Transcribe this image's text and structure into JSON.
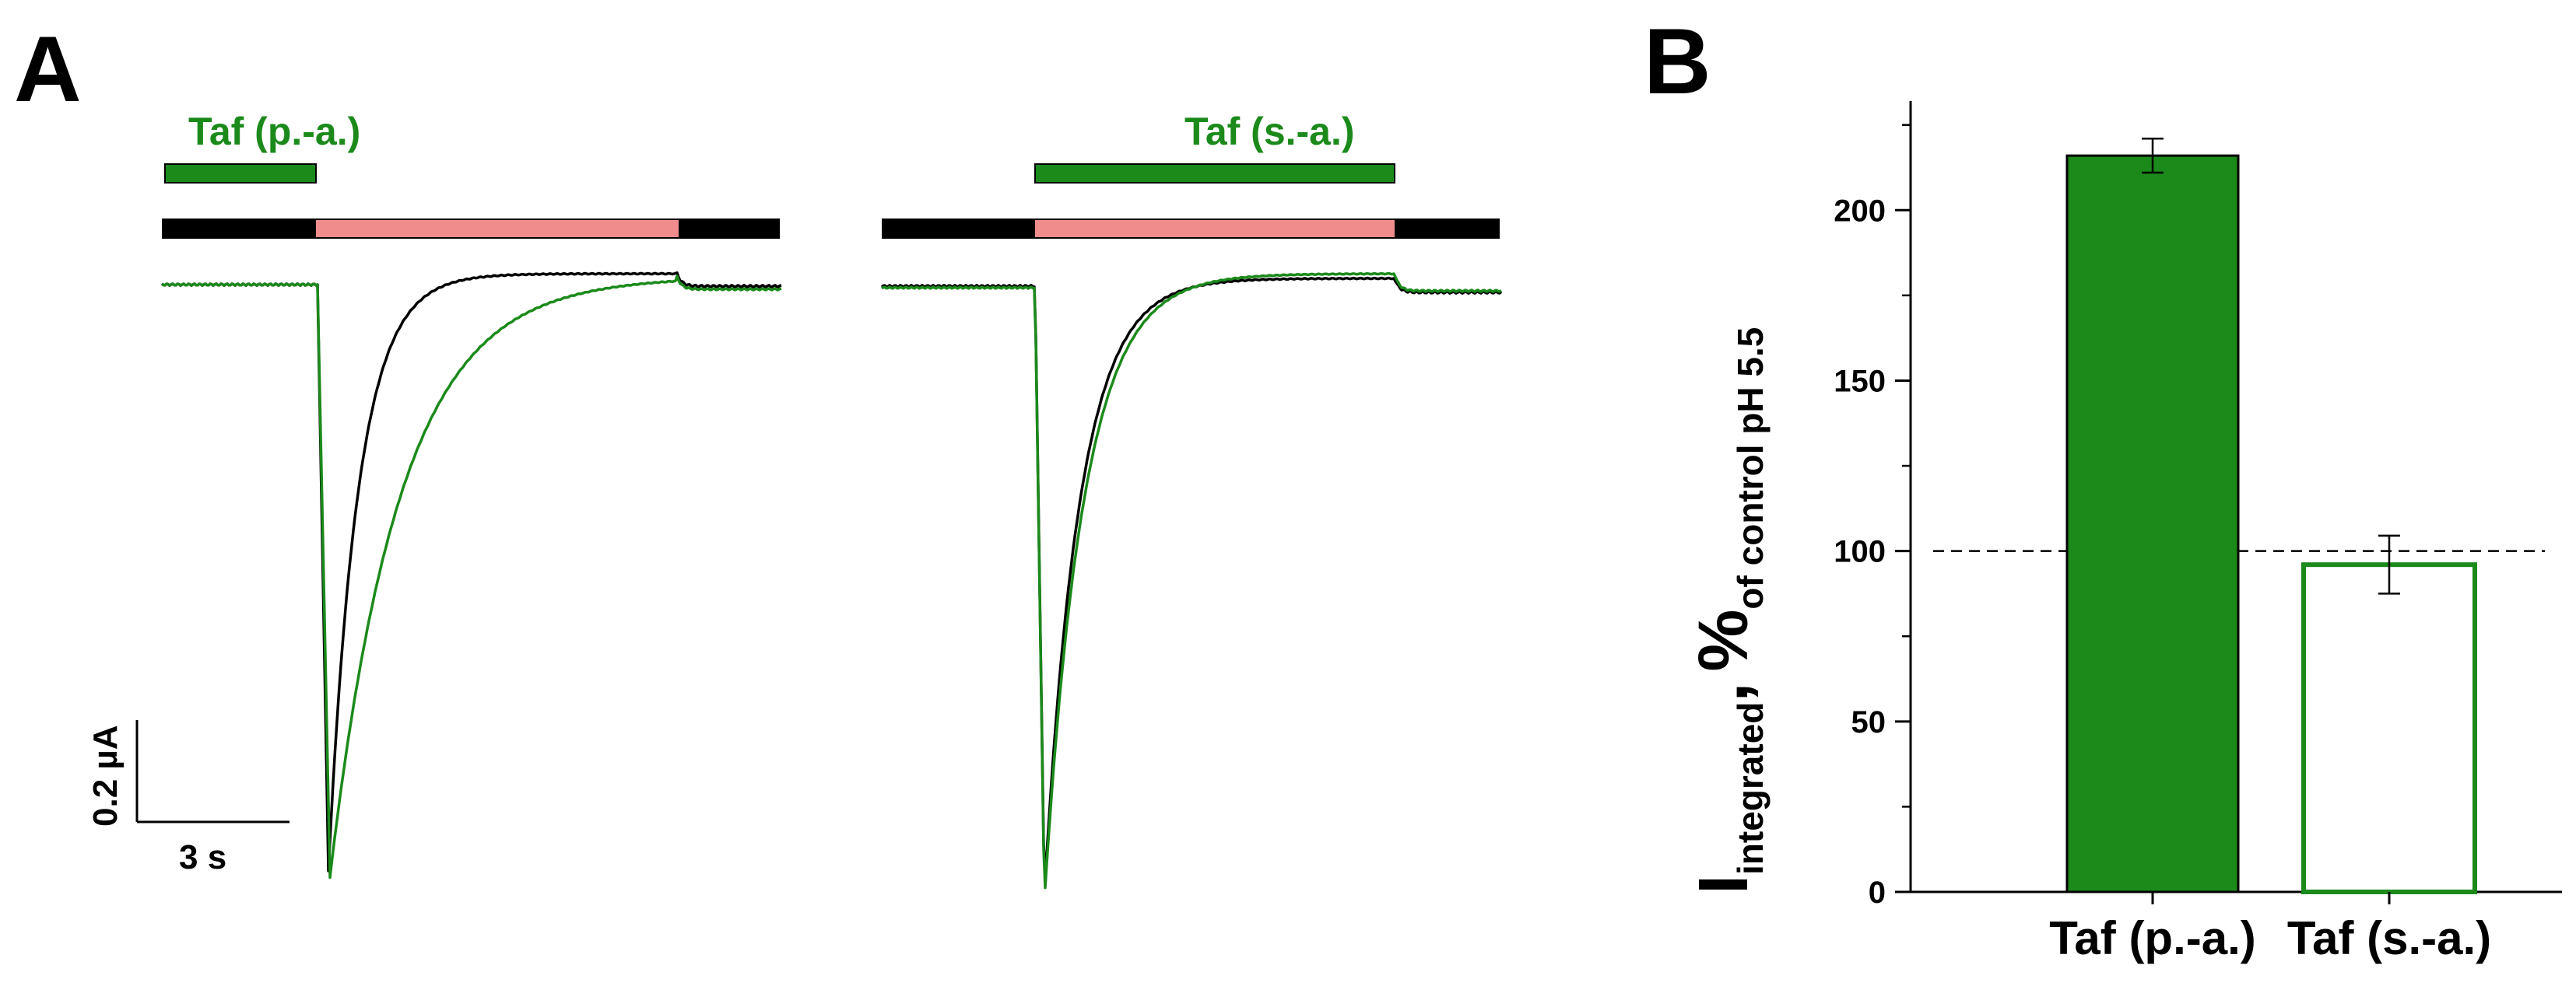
{
  "panel_a": {
    "letter": "A",
    "left": {
      "drug_label": "Taf (p.-a.)",
      "drug_color": "#1b8a1b"
    },
    "right": {
      "drug_label": "Taf  (s.-a.)",
      "drug_color": "#1b8a1b"
    },
    "solution_bar": {
      "baseline_color": "#000000",
      "acid_color": "#f08c8c"
    },
    "trace_colors": {
      "control": "#000000",
      "drug": "#1b8a1b"
    },
    "scale_bar": {
      "current_label": "0.2 µA",
      "time_label": "3 s"
    }
  },
  "panel_b": {
    "letter": "B",
    "ylabel_main": "I",
    "ylabel_sub1": "integrated",
    "ylabel_comma": ",",
    "ylabel_pct": "%",
    "ylabel_sub2": "of control pH 5.5"
  },
  "chart_data": {
    "type": "bar",
    "categories": [
      "Taf (p.-a.)",
      "Taf (s.-a.)"
    ],
    "values": [
      216,
      96
    ],
    "errors": [
      5,
      8.5
    ],
    "fill": [
      "solid",
      "open"
    ],
    "bar_color": "#1b8a1b",
    "ylim": [
      0,
      232
    ],
    "yticks": [
      0,
      50,
      100,
      150,
      200
    ],
    "reference_line": 100,
    "xlabel": "",
    "ylabel": "I integrated, % of control pH 5.5"
  }
}
